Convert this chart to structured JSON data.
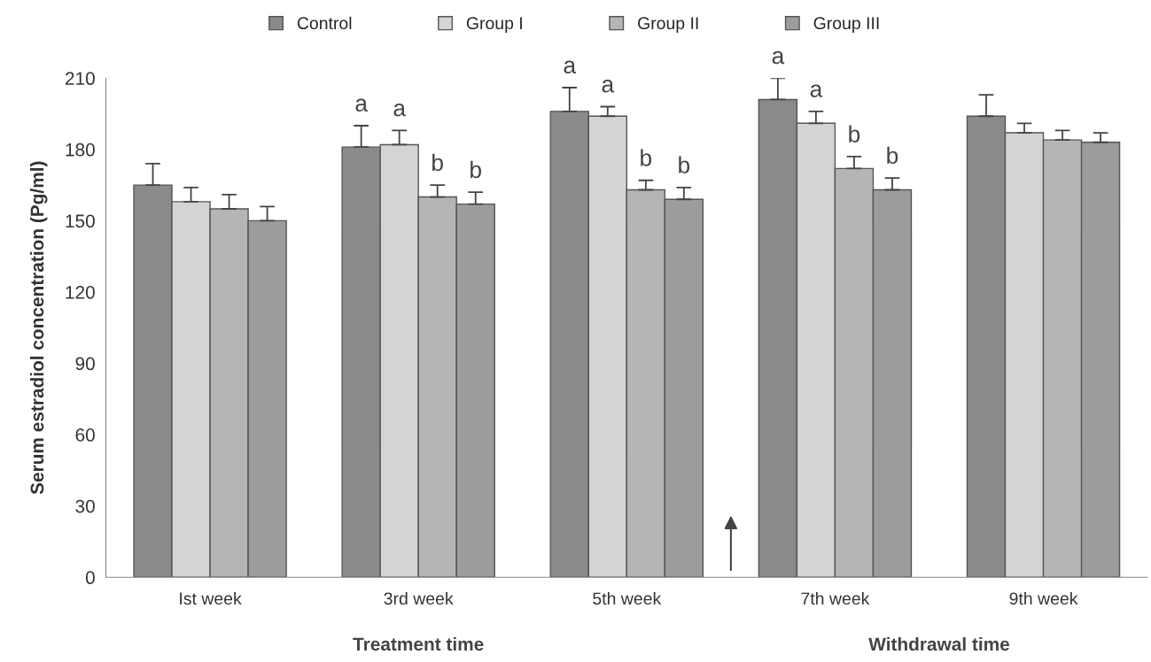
{
  "chart_data": {
    "type": "bar",
    "categories": [
      "Ist week",
      "3rd week",
      "5th week",
      "7th week",
      "9th week"
    ],
    "ylabel": "Serum estradiol concentration (Pg/ml)",
    "ylim": [
      0,
      210
    ],
    "yticks": [
      0,
      30,
      60,
      90,
      120,
      150,
      180,
      210
    ],
    "series": [
      {
        "name": "Control",
        "color": "#8a8a8a",
        "values": [
          165,
          181,
          196,
          201,
          194
        ],
        "errors": [
          9,
          9,
          10,
          9,
          9
        ],
        "value_labels": [
          null,
          "a",
          "a",
          "a",
          null
        ]
      },
      {
        "name": "Group I",
        "color": "#d4d4d4",
        "values": [
          158,
          182,
          194,
          191,
          187
        ],
        "errors": [
          6,
          6,
          4,
          5,
          4
        ],
        "value_labels": [
          null,
          "a",
          "a",
          "a",
          null
        ]
      },
      {
        "name": "Group II",
        "color": "#b5b5b5",
        "values": [
          155,
          160,
          163,
          172,
          184
        ],
        "errors": [
          6,
          5,
          4,
          5,
          4
        ],
        "value_labels": [
          null,
          "b",
          "b",
          "b",
          null
        ]
      },
      {
        "name": "Group III",
        "color": "#9c9c9c",
        "values": [
          150,
          157,
          159,
          163,
          183
        ],
        "errors": [
          6,
          5,
          5,
          5,
          4
        ],
        "value_labels": [
          null,
          "b",
          "b",
          "b",
          null
        ]
      }
    ],
    "annotations": [
      "Treatment time",
      "Withdrawal time"
    ],
    "legend": "top",
    "grid": false
  }
}
